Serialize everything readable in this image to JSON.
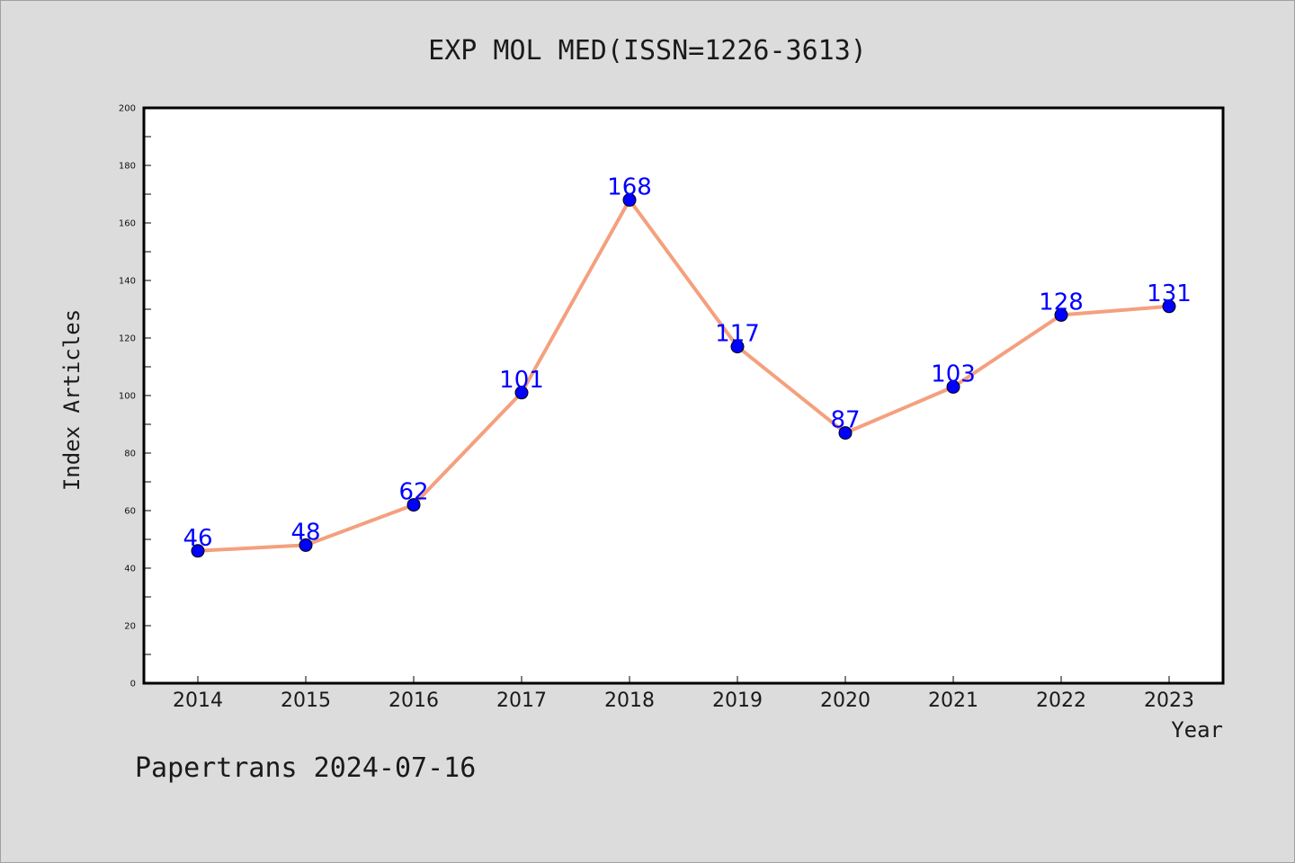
{
  "chart_data": {
    "type": "line",
    "title": "EXP MOL MED(ISSN=1226-3613)",
    "xlabel": "Year",
    "ylabel": "Index Articles",
    "footer": "Papertrans 2024-07-16",
    "categories": [
      "2014",
      "2015",
      "2016",
      "2017",
      "2018",
      "2019",
      "2020",
      "2021",
      "2022",
      "2023"
    ],
    "values": [
      46,
      48,
      62,
      101,
      168,
      117,
      87,
      103,
      128,
      131
    ],
    "ylim": [
      0,
      200
    ],
    "yticks": [
      0,
      20,
      40,
      60,
      80,
      100,
      120,
      140,
      160,
      180,
      200
    ],
    "grid": false,
    "line_color": "#f4a07e",
    "marker_color": "#0000ff",
    "label_color": "#0000ff"
  }
}
